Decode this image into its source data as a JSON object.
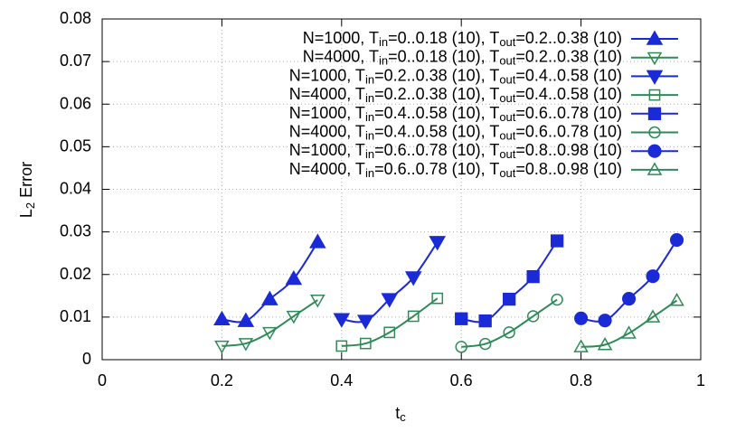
{
  "chart_data": {
    "type": "line",
    "xlabel": "tc",
    "ylabel": "L2 Error",
    "xlim": [
      0,
      1
    ],
    "xticks": [
      0,
      0.2,
      0.4,
      0.6,
      0.8,
      1
    ],
    "ylim": [
      0,
      0.08
    ],
    "yticks": [
      0,
      0.01,
      0.02,
      0.03,
      0.04,
      0.05,
      0.06,
      0.07,
      0.08
    ],
    "grid": true,
    "legend": "top-right",
    "series": [
      {
        "name": "N=1000, Tin=0..0.18 (10), Tout=0.2..0.38 (10)",
        "color": "#1a2ad6",
        "marker": "triangle-up",
        "filled": true,
        "x": [
          0.2,
          0.24,
          0.28,
          0.32,
          0.36
        ],
        "values": [
          0.0095,
          0.0091,
          0.0142,
          0.019,
          0.0276
        ]
      },
      {
        "name": "N=4000, Tin=0..0.18 (10), Tout=0.2..0.38 (10)",
        "color": "#2e8b57",
        "marker": "triangle-down",
        "filled": false,
        "x": [
          0.2,
          0.24,
          0.28,
          0.32,
          0.36
        ],
        "values": [
          0.0032,
          0.0038,
          0.0064,
          0.0102,
          0.014
        ]
      },
      {
        "name": "N=1000, Tin=0.2..0.38 (10), Tout=0.4..0.58 (10)",
        "color": "#1a2ad6",
        "marker": "triangle-down",
        "filled": true,
        "x": [
          0.4,
          0.44,
          0.48,
          0.52,
          0.56
        ],
        "values": [
          0.0095,
          0.0091,
          0.0142,
          0.0193,
          0.0276
        ]
      },
      {
        "name": "N=4000, Tin=0.2..0.38 (10), Tout=0.4..0.58 (10)",
        "color": "#2e8b57",
        "marker": "square",
        "filled": false,
        "x": [
          0.4,
          0.44,
          0.48,
          0.52,
          0.56
        ],
        "values": [
          0.0032,
          0.0038,
          0.0064,
          0.0102,
          0.0144
        ]
      },
      {
        "name": "N=1000, Tin=0.4..0.58 (10), Tout=0.6..0.78 (10)",
        "color": "#1a2ad6",
        "marker": "square",
        "filled": true,
        "x": [
          0.6,
          0.64,
          0.68,
          0.72,
          0.76
        ],
        "values": [
          0.0096,
          0.0091,
          0.0142,
          0.0195,
          0.0279
        ]
      },
      {
        "name": "N=4000, Tin=0.4..0.58 (10), Tout=0.6..0.78 (10)",
        "color": "#2e8b57",
        "marker": "circle",
        "filled": false,
        "x": [
          0.6,
          0.64,
          0.68,
          0.72,
          0.76
        ],
        "values": [
          0.003,
          0.0037,
          0.0064,
          0.0102,
          0.0141
        ]
      },
      {
        "name": "N=1000, Tin=0.6..0.78 (10), Tout=0.8..0.98 (10)",
        "color": "#1a2ad6",
        "marker": "circle",
        "filled": true,
        "x": [
          0.8,
          0.84,
          0.88,
          0.92,
          0.96
        ],
        "values": [
          0.0097,
          0.0092,
          0.0143,
          0.0196,
          0.0281
        ]
      },
      {
        "name": "N=4000, Tin=0.6..0.78 (10), Tout=0.8..0.98 (10)",
        "color": "#2e8b57",
        "marker": "triangle-up",
        "filled": false,
        "x": [
          0.8,
          0.84,
          0.88,
          0.92,
          0.96
        ],
        "values": [
          0.003,
          0.0035,
          0.0062,
          0.01,
          0.0139
        ]
      }
    ]
  }
}
